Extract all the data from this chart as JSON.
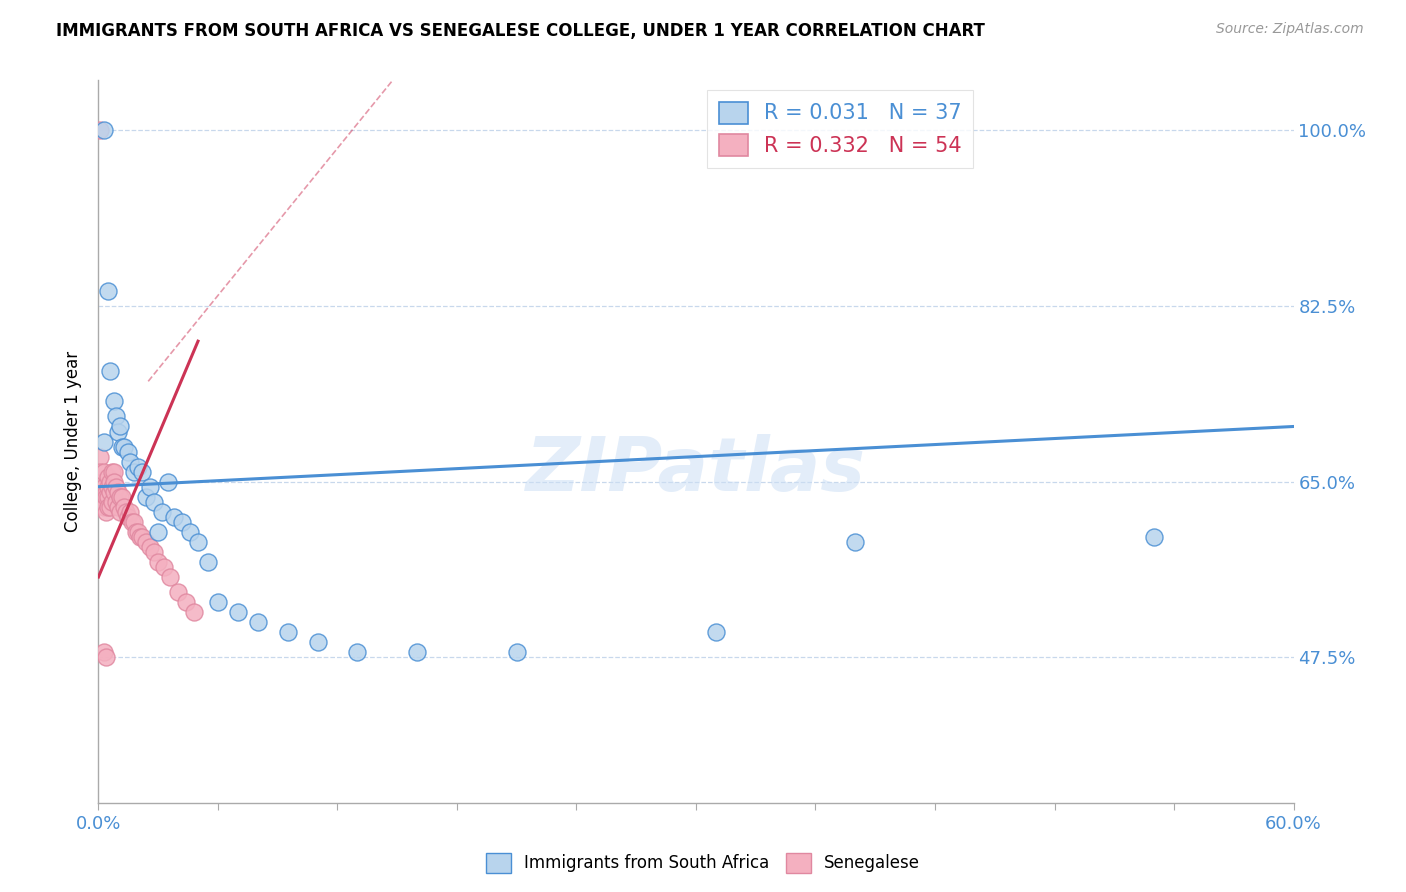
{
  "title": "IMMIGRANTS FROM SOUTH AFRICA VS SENEGALESE COLLEGE, UNDER 1 YEAR CORRELATION CHART",
  "source": "Source: ZipAtlas.com",
  "ylabel": "College, Under 1 year",
  "legend_label_1": "Immigrants from South Africa",
  "legend_label_2": "Senegalese",
  "R1": 0.031,
  "N1": 37,
  "R2": 0.332,
  "N2": 54,
  "color1": "#b8d4ed",
  "color2": "#f4b0c0",
  "line1_color": "#4a8fd4",
  "line2_color": "#cc3355",
  "xlim": [
    0.0,
    0.6
  ],
  "ylim": [
    0.33,
    1.05
  ],
  "yticks": [
    0.475,
    0.65,
    0.825,
    1.0
  ],
  "ytick_labels": [
    "47.5%",
    "65.0%",
    "82.5%",
    "100.0%"
  ],
  "xticks": [
    0.0,
    0.06,
    0.12,
    0.18,
    0.24,
    0.3,
    0.36,
    0.42,
    0.48,
    0.54,
    0.6
  ],
  "xtick_labels": [
    "0.0%",
    "",
    "",
    "",
    "",
    "",
    "",
    "",
    "",
    "",
    "60.0%"
  ],
  "watermark": "ZIPatlas",
  "blue_scatter_x": [
    0.003,
    0.005,
    0.006,
    0.008,
    0.009,
    0.01,
    0.011,
    0.012,
    0.013,
    0.015,
    0.016,
    0.018,
    0.02,
    0.022,
    0.024,
    0.026,
    0.028,
    0.03,
    0.032,
    0.035,
    0.038,
    0.042,
    0.046,
    0.05,
    0.055,
    0.06,
    0.07,
    0.08,
    0.095,
    0.11,
    0.13,
    0.16,
    0.21,
    0.31,
    0.38,
    0.53,
    0.003
  ],
  "blue_scatter_y": [
    0.69,
    0.84,
    0.76,
    0.73,
    0.715,
    0.7,
    0.705,
    0.685,
    0.685,
    0.68,
    0.67,
    0.66,
    0.665,
    0.66,
    0.635,
    0.645,
    0.63,
    0.6,
    0.62,
    0.65,
    0.615,
    0.61,
    0.6,
    0.59,
    0.57,
    0.53,
    0.52,
    0.51,
    0.5,
    0.49,
    0.48,
    0.48,
    0.48,
    0.5,
    0.59,
    0.595,
    1.0
  ],
  "pink_scatter_x": [
    0.001,
    0.001,
    0.002,
    0.002,
    0.002,
    0.003,
    0.003,
    0.003,
    0.003,
    0.004,
    0.004,
    0.004,
    0.005,
    0.005,
    0.005,
    0.005,
    0.006,
    0.006,
    0.006,
    0.007,
    0.007,
    0.007,
    0.008,
    0.008,
    0.008,
    0.009,
    0.009,
    0.01,
    0.01,
    0.011,
    0.011,
    0.012,
    0.013,
    0.014,
    0.015,
    0.016,
    0.017,
    0.018,
    0.019,
    0.02,
    0.021,
    0.022,
    0.024,
    0.026,
    0.028,
    0.03,
    0.033,
    0.036,
    0.04,
    0.044,
    0.048,
    0.003,
    0.004,
    0.001
  ],
  "pink_scatter_y": [
    0.675,
    0.66,
    0.65,
    0.64,
    0.635,
    0.66,
    0.645,
    0.635,
    0.625,
    0.64,
    0.635,
    0.62,
    0.655,
    0.645,
    0.635,
    0.625,
    0.65,
    0.64,
    0.625,
    0.66,
    0.645,
    0.63,
    0.66,
    0.65,
    0.64,
    0.645,
    0.63,
    0.64,
    0.625,
    0.635,
    0.62,
    0.635,
    0.625,
    0.62,
    0.615,
    0.62,
    0.61,
    0.61,
    0.6,
    0.6,
    0.595,
    0.595,
    0.59,
    0.585,
    0.58,
    0.57,
    0.565,
    0.555,
    0.54,
    0.53,
    0.52,
    0.48,
    0.475,
    1.0
  ],
  "blue_trendline_x": [
    0.0,
    0.6
  ],
  "blue_trendline_y": [
    0.645,
    0.705
  ],
  "pink_trendline_x": [
    0.0,
    0.05
  ],
  "pink_trendline_y": [
    0.555,
    0.79
  ]
}
